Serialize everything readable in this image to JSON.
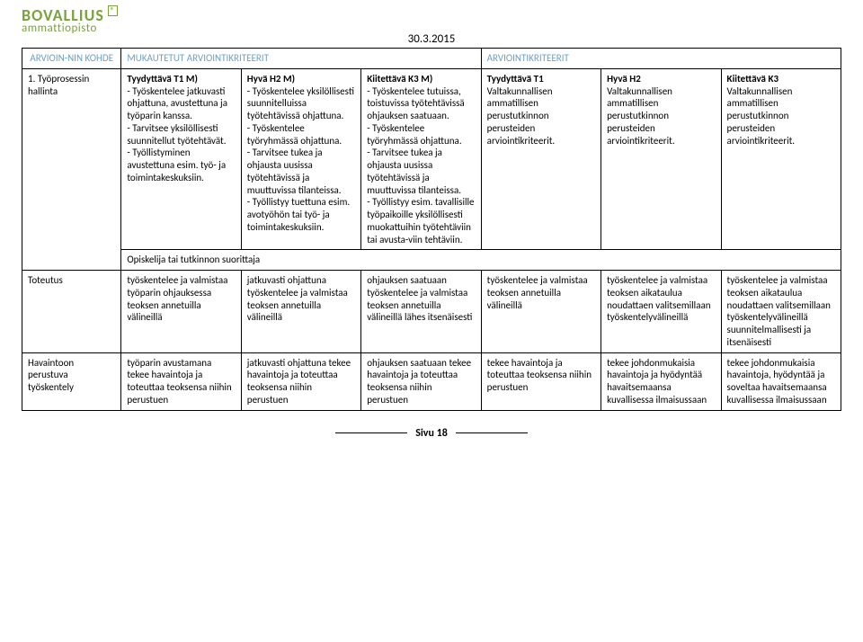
{
  "logo": {
    "main": "BOVALLIUS",
    "reg": "®",
    "sub": "ammattiopisto"
  },
  "date": "30.3.2015",
  "headers": {
    "left": "ARVIOIN-NIN KOHDE",
    "mid": "MUKAUTETUT ARVIOINTIKRITEERIT",
    "right": "ARVIOINTIKRITEERIT"
  },
  "row1": {
    "label": "1. Työprosessin hallinta",
    "c1_title": "Tyydyttävä T1 M)",
    "c1_body": "- Työskentelee jatkuvasti ohjattuna, avustettuna ja työparin kanssa.\n- Tarvitsee yksilöllisesti suunnitellut työtehtävät.\n- Työllistyminen avustettuna esim. työ- ja toimintakeskuksiin.",
    "c2_title": "Hyvä H2 M)",
    "c2_body": "- Työskentelee yksilöllisesti suunnitelluissa työtehtävissä ohjattuna.\n- Työskentelee työryhmässä ohjattuna.\n- Tarvitsee tukea ja ohjausta uusissa työtehtävissä ja muuttuvissa tilanteissa.\n- Työllistyy tuettuna esim. avotyöhön tai työ- ja toimintakeskuksiin.",
    "c3_title": "Kiitettävä K3 M)",
    "c3_body": "- Työskentelee tutuissa, toistuvissa työtehtävissä ohjauksen saatuaan.\n- Työskentelee työryhmässä ohjattuna.\n- Tarvitsee tukea ja ohjausta uusissa työtehtävissä ja muuttuvissa tilanteissa.\n- Työllistyy esim. tavallisille työpaikoille yksilöllisesti muokattuihin työtehtäviin tai avusta-viin tehtäviin.",
    "c4_title": "Tyydyttävä T1",
    "c4_body": "Valtakunnallisen ammatillisen perustutkinnon perusteiden arviointikriteerit.",
    "c5_title": "Hyvä H2",
    "c5_body": "Valtakunnallisen ammatillisen perustutkinnon perusteiden arviointikriteerit.",
    "c6_title": "Kiitettävä K3",
    "c6_body": "Valtakunnallisen ammatillisen perustutkinnon perusteiden arviointikriteerit."
  },
  "spacer_text": "Opiskelija tai tutkinnon suorittaja",
  "row2": {
    "label": "Toteutus",
    "c1": "työskentelee ja valmistaa työparin ohjauksessa teoksen annetuilla välineillä",
    "c2": "jatkuvasti ohjattuna työskentelee ja valmistaa teoksen annetuilla välineillä",
    "c3": "ohjauksen saatuaan työskentelee ja valmistaa teoksen annetuilla välineillä lähes itsenäisesti",
    "c4": "työskentelee ja valmistaa teoksen annetuilla välineillä",
    "c5": "työskentelee ja valmistaa teoksen aikataulua noudattaen valitsemillaan työskentelyvälineillä",
    "c6": "työskentelee ja valmistaa teoksen aikataulua noudattaen valitsemillaan työskentelyvälineillä suunnitelmallisesti ja itsenäisesti"
  },
  "row3": {
    "label": "Havaintoon perustuva työskentely",
    "c1": "työparin avustamana tekee havaintoja ja toteuttaa teoksensa niihin perustuen",
    "c2": "jatkuvasti ohjattuna tekee havaintoja ja toteuttaa teoksensa niihin perustuen",
    "c3": "ohjauksen saatuaan tekee havaintoja ja toteuttaa teoksensa niihin perustuen",
    "c4": "tekee havaintoja ja toteuttaa teoksensa niihin perustuen",
    "c5": "tekee johdonmukaisia havaintoja ja hyödyntää havaitsemaansa kuvallisessa ilmaisussaan",
    "c6": "tekee johdonmukaisia havaintoja, hyödyntää ja soveltaa havaitsemaansa kuvallisessa ilmaisussaan"
  },
  "footer": "Sivu 18"
}
